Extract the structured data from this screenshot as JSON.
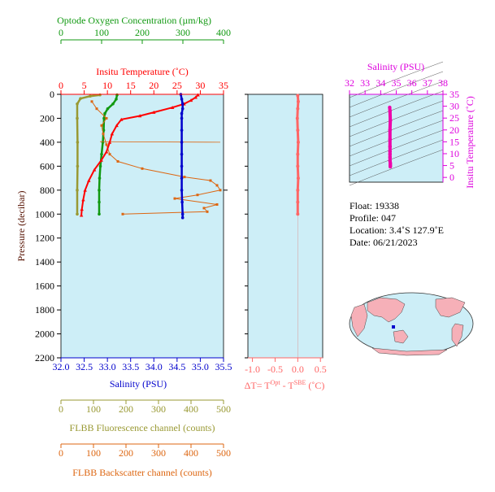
{
  "colors": {
    "oxygen": "#119911",
    "temperature": "#ff0000",
    "salinity": "#0000cc",
    "ts_axis": "#dd00dd",
    "ts_points": "#ee00aa",
    "delta_t": "#ff6666",
    "fluorescence": "#999933",
    "backscatter": "#dd6611",
    "plot_bg": "#cdeef7",
    "pressure_axis": "#551100"
  },
  "labels": {
    "oxygen_title": "Optode Oxygen Concentration (µm/kg)",
    "temperature_title": "Insitu Temperature (˚C)",
    "pressure_title": "Pressure (decibar)",
    "salinity_title": "Salinity (PSU)",
    "delta_t_title": "ΔT= T",
    "delta_t_sup1": "Opt",
    "delta_t_mid": " - T",
    "delta_t_sup2": "SBE",
    "delta_t_unit": " (˚C)",
    "ts_top_title": "Salinity (PSU)",
    "ts_right_title": "Insitu Temperature (˚C)",
    "fluorescence_title": "FLBB Fluorescence channel (counts)",
    "backscatter_title": "FLBB Backscatter channel (counts)"
  },
  "info": {
    "float": "Float:  19338",
    "profile": "Profile:  047",
    "location": "Location:  3.4˚S  127.9˚E",
    "date": "Date:  06/21/2023"
  },
  "chart_data": [
    {
      "type": "line",
      "name": "main_profile",
      "pressure_ticks": [
        "0",
        "200",
        "400",
        "600",
        "800",
        "1000",
        "1200",
        "1400",
        "1600",
        "1800",
        "2000",
        "2200"
      ],
      "pressure_range": [
        0,
        2200
      ],
      "temperature_ticks": [
        "0",
        "5",
        "10",
        "15",
        "20",
        "25",
        "30",
        "35"
      ],
      "temperature_range": [
        0,
        35
      ],
      "salinity_ticks": [
        "32.0",
        "32.5",
        "33.0",
        "33.5",
        "34.0",
        "34.5",
        "35.0",
        "35.5"
      ],
      "salinity_range": [
        32.0,
        35.5
      ],
      "oxygen_ticks": [
        "0",
        "100",
        "200",
        "300",
        "400"
      ],
      "oxygen_range": [
        0,
        400
      ],
      "fluorescence_ticks": [
        "0",
        "100",
        "200",
        "300",
        "400",
        "500"
      ],
      "fluorescence_range": [
        0,
        500
      ],
      "backscatter_ticks": [
        "0",
        "100",
        "200",
        "300",
        "400",
        "500"
      ],
      "backscatter_range": [
        0,
        500
      ],
      "temperature": [
        [
          29.5,
          5
        ],
        [
          29.0,
          25
        ],
        [
          28.0,
          50
        ],
        [
          26.5,
          80
        ],
        [
          24.0,
          110
        ],
        [
          20.0,
          150
        ],
        [
          17.0,
          180
        ],
        [
          13.0,
          210
        ],
        [
          12.0,
          260
        ],
        [
          11.0,
          330
        ],
        [
          10.5,
          400
        ],
        [
          9.8,
          480
        ],
        [
          8.7,
          550
        ],
        [
          7.2,
          630
        ],
        [
          6.0,
          720
        ],
        [
          5.2,
          800
        ],
        [
          4.8,
          880
        ],
        [
          4.5,
          960
        ],
        [
          4.4,
          1010
        ]
      ],
      "salinity": [
        [
          34.58,
          0
        ],
        [
          34.6,
          40
        ],
        [
          34.62,
          80
        ],
        [
          34.62,
          120
        ],
        [
          34.6,
          160
        ],
        [
          34.6,
          200
        ],
        [
          34.6,
          300
        ],
        [
          34.6,
          400
        ],
        [
          34.6,
          500
        ],
        [
          34.6,
          600
        ],
        [
          34.6,
          700
        ],
        [
          34.6,
          800
        ],
        [
          34.61,
          900
        ],
        [
          34.62,
          1000
        ],
        [
          34.62,
          1030
        ]
      ],
      "oxygen": [
        [
          138,
          5
        ],
        [
          136,
          40
        ],
        [
          128,
          80
        ],
        [
          115,
          120
        ],
        [
          108,
          160
        ],
        [
          106,
          200
        ],
        [
          105,
          300
        ],
        [
          103,
          400
        ],
        [
          100,
          500
        ],
        [
          97,
          600
        ],
        [
          95,
          700
        ],
        [
          94,
          800
        ],
        [
          94,
          900
        ],
        [
          94,
          1000
        ]
      ],
      "fluorescence": [
        [
          120,
          5
        ],
        [
          90,
          15
        ],
        [
          60,
          35
        ],
        [
          50,
          80
        ],
        [
          50,
          200
        ],
        [
          51,
          400
        ],
        [
          51,
          600
        ],
        [
          50,
          800
        ],
        [
          50,
          1000
        ]
      ],
      "backscatter": [
        [
          95,
          60
        ],
        [
          110,
          120
        ],
        [
          140,
          200
        ],
        [
          125,
          260
        ],
        [
          130,
          330
        ],
        [
          140,
          420
        ],
        [
          150,
          500
        ],
        [
          175,
          560
        ],
        [
          250,
          620
        ],
        [
          380,
          690
        ],
        [
          460,
          720
        ],
        [
          480,
          760
        ],
        [
          490,
          800
        ],
        [
          420,
          840
        ],
        [
          350,
          870
        ],
        [
          480,
          920
        ],
        [
          440,
          950
        ],
        [
          450,
          980
        ],
        [
          190,
          1000
        ]
      ],
      "backscatter_spike": [
        [
          120,
          395
        ],
        [
          490,
          400
        ]
      ]
    },
    {
      "type": "scatter",
      "name": "delta_t",
      "x_ticks": [
        "-1.0",
        "-0.5",
        "0.0",
        "0.5"
      ],
      "x_range": [
        -1.1,
        0.55
      ],
      "pressure_range": [
        0,
        2200
      ],
      "points": [
        [
          0.0,
          10
        ],
        [
          0.01,
          60
        ],
        [
          0.0,
          120
        ],
        [
          -0.01,
          200
        ],
        [
          0.0,
          300
        ],
        [
          0.01,
          400
        ],
        [
          0.0,
          500
        ],
        [
          0.0,
          600
        ],
        [
          0.01,
          700
        ],
        [
          0.0,
          800
        ],
        [
          0.0,
          900
        ],
        [
          0.0,
          1000
        ]
      ]
    },
    {
      "type": "scatter",
      "name": "ts_diagram",
      "x_ticks": [
        "32",
        "33",
        "34",
        "35",
        "36",
        "37",
        "38"
      ],
      "x_range": [
        32,
        38
      ],
      "y_ticks": [
        "0",
        "5",
        "10",
        "15",
        "20",
        "25",
        "30",
        "35"
      ],
      "y_range": [
        -2,
        35
      ],
      "points": [
        [
          34.58,
          29.5
        ],
        [
          34.6,
          28.0
        ],
        [
          34.62,
          24.0
        ],
        [
          34.6,
          20.0
        ],
        [
          34.6,
          16.0
        ],
        [
          34.6,
          13.0
        ],
        [
          34.6,
          11.0
        ],
        [
          34.6,
          9.8
        ],
        [
          34.6,
          8.5
        ],
        [
          34.6,
          7.0
        ],
        [
          34.62,
          6.0
        ],
        [
          34.62,
          5.2
        ],
        [
          34.62,
          4.5
        ]
      ]
    }
  ]
}
